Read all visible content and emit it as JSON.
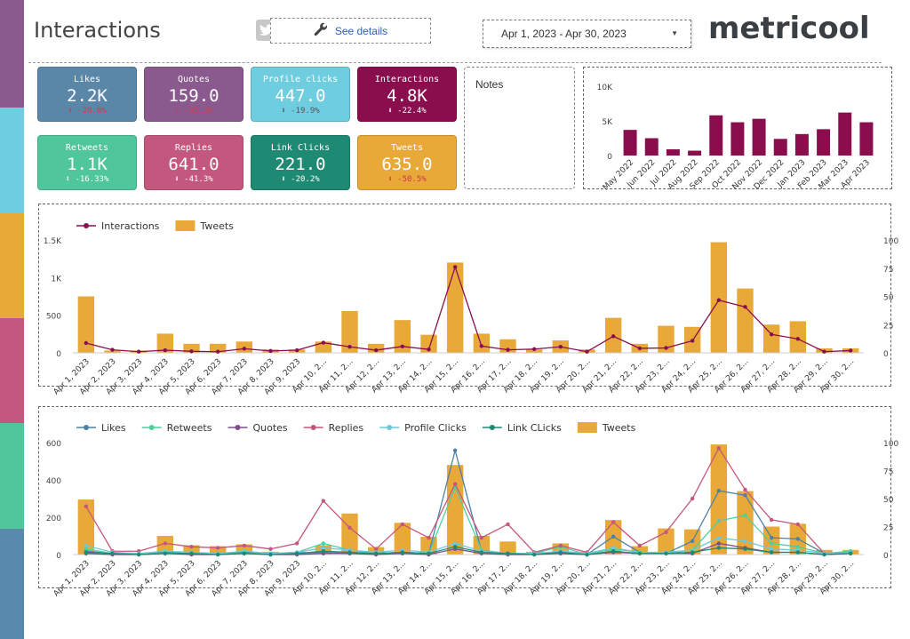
{
  "colors": {
    "stripes": [
      "#8a5a8e",
      "#6fcde0",
      "#e8a938",
      "#c4577d",
      "#4fc69b",
      "#5a8aab"
    ],
    "likes": "#4c82a8",
    "retweets": "#4ecf9d",
    "quotes": "#7e4e8b",
    "replies": "#c4577d",
    "profile": "#6bc8dd",
    "link": "#1e8a73",
    "tweets": "#e8a938",
    "interactions": "#8a0e4e"
  },
  "header": {
    "title": "Interactions",
    "see_details": "See details",
    "date_range": "Apr 1, 2023 - Apr 30, 2023",
    "logo": "metricool"
  },
  "kpis": [
    {
      "label": "Likes",
      "value": "2.2K",
      "delta": "⬇ -20.0%",
      "color": "#5a86a8"
    },
    {
      "label": "Quotes",
      "value": "159.0",
      "delta": "⬇ -33.3%",
      "color": "#8a5a8e"
    },
    {
      "label": "Profile clicks",
      "value": "447.0",
      "delta": "⬇ -19.9%",
      "color": "#6fcde0"
    },
    {
      "label": "Interactions",
      "value": "4.8K",
      "delta": "⬇ -22.4%",
      "color": "#8a0e4e"
    },
    {
      "label": "Retweets",
      "value": "1.1K",
      "delta": "⬇ -16.33%",
      "color": "#4fc69b"
    },
    {
      "label": "Replies",
      "value": "641.0",
      "delta": "⬇ -41.3%",
      "color": "#c4577d"
    },
    {
      "label": "Link Clicks",
      "value": "221.0",
      "delta": "⬇ -20.2%",
      "color": "#1e8a73"
    },
    {
      "label": "Tweets",
      "value": "635.0",
      "delta": "⬇ -50.5%",
      "color": "#e8a938"
    }
  ],
  "notes": {
    "title": "Notes"
  },
  "chart_data": [
    {
      "type": "bar",
      "categories": [
        "May 2022",
        "Jun 2022",
        "Jul 2022",
        "Aug 2022",
        "Sep 2022",
        "Oct 2022",
        "Nov 2022",
        "Dec 2022",
        "Jan 2023",
        "Feb 2023",
        "Mar 2023",
        "Apr 2023"
      ],
      "values": [
        3700,
        2500,
        900,
        700,
        5800,
        4800,
        5300,
        2400,
        3100,
        3800,
        6200,
        4800
      ],
      "yticks": [
        "10K",
        "5K",
        "0"
      ],
      "ylim": [
        0,
        10000
      ]
    },
    {
      "type": "bar+line",
      "categories": [
        "Apr 1, 2023",
        "Apr 2, 2023",
        "Apr 3, 2023",
        "Apr 4, 2023",
        "Apr 5, 2023",
        "Apr 6, 2023",
        "Apr 7, 2023",
        "Apr 8, 2023",
        "Apr 9, 2023",
        "Apr 10, 2...",
        "Apr 11, 2...",
        "Apr 12, 2...",
        "Apr 13, 2...",
        "Apr 14, 2...",
        "Apr 15, 2...",
        "Apr 16, 2...",
        "Apr 17, 2...",
        "Apr 18, 2...",
        "Apr 19, 2...",
        "Apr 20, 2...",
        "Apr 21, 2...",
        "Apr 22, 2...",
        "Apr 23, 2...",
        "Apr 24, 2...",
        "Apr 25, 2...",
        "Apr 26, 2...",
        "Apr 27, 2...",
        "Apr 28, 2...",
        "Apr 29, 2...",
        "Apr 30, 2..."
      ],
      "series": [
        {
          "name": "Interactions",
          "kind": "line",
          "axis": "left",
          "values": [
            130,
            40,
            15,
            35,
            20,
            15,
            55,
            25,
            35,
            135,
            80,
            35,
            85,
            45,
            1140,
            90,
            40,
            50,
            80,
            15,
            220,
            60,
            65,
            160,
            700,
            610,
            245,
            185,
            15,
            30
          ]
        },
        {
          "name": "Tweets",
          "kind": "bar",
          "axis": "right",
          "values": [
            50,
            2,
            2,
            17,
            8,
            8,
            10,
            3,
            3,
            10,
            37,
            8,
            29,
            16,
            80,
            17,
            12,
            3,
            11,
            3,
            31,
            8,
            24,
            23,
            98,
            57,
            25,
            28,
            4,
            4
          ]
        }
      ],
      "yticks_left": [
        "1.5K",
        "1K",
        "500",
        "0"
      ],
      "yticks_right": [
        "100",
        "75",
        "50",
        "25",
        "0"
      ],
      "ylim_left": [
        0,
        1500
      ],
      "ylim_right": [
        0,
        100
      ]
    },
    {
      "type": "bar+line",
      "categories": [
        "Apr 1, 2023",
        "Apr 2, 2023",
        "Apr 3, 2023",
        "Apr 4, 2023",
        "Apr 5, 2023",
        "Apr 6, 2023",
        "Apr 7, 2023",
        "Apr 8, 2023",
        "Apr 9, 2023",
        "Apr 10, 2...",
        "Apr 11, 2...",
        "Apr 12, 2...",
        "Apr 13, 2...",
        "Apr 14, 2...",
        "Apr 15, 2...",
        "Apr 16, 2...",
        "Apr 17, 2...",
        "Apr 18, 2...",
        "Apr 19, 2...",
        "Apr 20, 2...",
        "Apr 21, 2...",
        "Apr 22, 2...",
        "Apr 23, 2...",
        "Apr 24, 2...",
        "Apr 25, 2...",
        "Apr 26, 2...",
        "Apr 27, 2...",
        "Apr 28, 2...",
        "Apr 29, 2...",
        "Apr 30, 2..."
      ],
      "series": [
        {
          "name": "Likes",
          "kind": "line",
          "axis": "right",
          "values": [
            3,
            1,
            1,
            2,
            1,
            1,
            2,
            1,
            1,
            2,
            1,
            1,
            2,
            1,
            93,
            3,
            1,
            1,
            1,
            0,
            16,
            2,
            1,
            12,
            57,
            53,
            15,
            14,
            1,
            2
          ]
        },
        {
          "name": "Retweets",
          "kind": "line",
          "axis": "right",
          "values": [
            5,
            1,
            1,
            1,
            1,
            1,
            1,
            1,
            2,
            10,
            4,
            1,
            2,
            1,
            60,
            4,
            1,
            1,
            7,
            0,
            5,
            2,
            1,
            4,
            30,
            35,
            10,
            7,
            1,
            3
          ]
        },
        {
          "name": "Quotes",
          "kind": "line",
          "axis": "right",
          "values": [
            1,
            0,
            0,
            1,
            0,
            0,
            1,
            0,
            0,
            1,
            1,
            0,
            1,
            0,
            5,
            1,
            0,
            0,
            1,
            0,
            2,
            1,
            1,
            1,
            10,
            6,
            2,
            2,
            0,
            1
          ]
        },
        {
          "name": "Replies",
          "kind": "line",
          "axis": "right",
          "values": [
            43,
            3,
            3,
            10,
            7,
            6,
            8,
            5,
            10,
            48,
            24,
            5,
            27,
            15,
            63,
            15,
            27,
            2,
            8,
            2,
            29,
            8,
            20,
            50,
            95,
            58,
            31,
            27,
            1,
            2
          ]
        },
        {
          "name": "Profile Clicks",
          "kind": "line",
          "axis": "right",
          "values": [
            8,
            2,
            1,
            3,
            2,
            1,
            3,
            1,
            2,
            6,
            4,
            2,
            4,
            2,
            10,
            3,
            1,
            1,
            3,
            1,
            6,
            2,
            2,
            4,
            15,
            12,
            5,
            4,
            1,
            2
          ]
        },
        {
          "name": "Link CLicks",
          "kind": "line",
          "axis": "right",
          "values": [
            2,
            1,
            0,
            1,
            1,
            0,
            1,
            0,
            1,
            3,
            2,
            1,
            2,
            1,
            7,
            2,
            1,
            0,
            2,
            0,
            3,
            1,
            1,
            2,
            6,
            5,
            2,
            2,
            0,
            1
          ]
        },
        {
          "name": "Tweets",
          "kind": "bar",
          "axis": "left",
          "values": [
            295,
            10,
            10,
            100,
            50,
            45,
            55,
            15,
            15,
            50,
            220,
            40,
            170,
            95,
            480,
            100,
            70,
            15,
            60,
            15,
            185,
            45,
            140,
            135,
            590,
            340,
            150,
            165,
            25,
            25
          ]
        }
      ],
      "yticks_left": [
        "600",
        "400",
        "200",
        "0"
      ],
      "yticks_right": [
        "100",
        "75",
        "50",
        "25",
        "0"
      ],
      "ylim_left": [
        0,
        600
      ],
      "ylim_right": [
        0,
        100
      ]
    }
  ]
}
